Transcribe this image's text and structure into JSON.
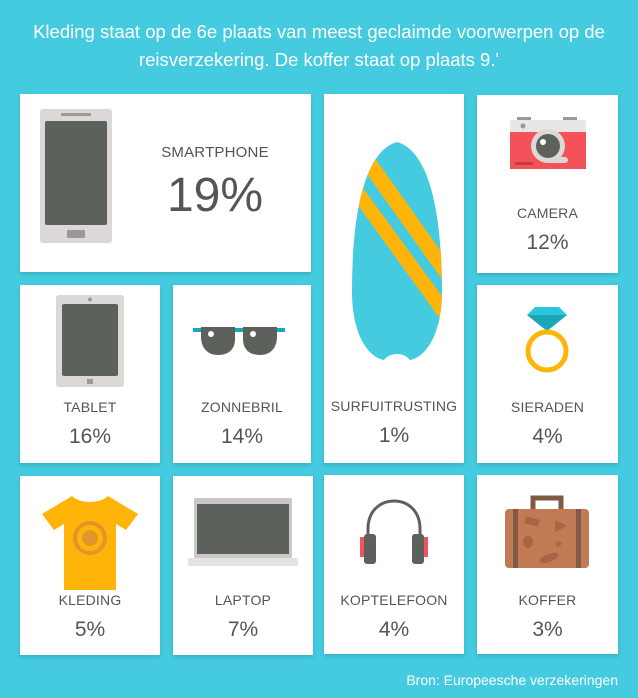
{
  "title": "Kleding staat op de 6e plaats van meest geclaimde voorwerpen op de reisverzekering. De koffer staat op plaats 9.'",
  "items": [
    {
      "label": "SMARTPHONE",
      "percent": "19%",
      "icon": "smartphone-icon"
    },
    {
      "label": "SURFUITRUSTING",
      "percent": "1%",
      "icon": "surfboard-icon"
    },
    {
      "label": "CAMERA",
      "percent": "12%",
      "icon": "camera-icon"
    },
    {
      "label": "TABLET",
      "percent": "16%",
      "icon": "tablet-icon"
    },
    {
      "label": "ZONNEBRIL",
      "percent": "14%",
      "icon": "sunglasses-icon"
    },
    {
      "label": "SIERADEN",
      "percent": "4%",
      "icon": "ring-icon"
    },
    {
      "label": "KLEDING",
      "percent": "5%",
      "icon": "tshirt-icon"
    },
    {
      "label": "LAPTOP",
      "percent": "7%",
      "icon": "laptop-icon"
    },
    {
      "label": "KOPTELEFOON",
      "percent": "4%",
      "icon": "headphones-icon"
    },
    {
      "label": "KOFFER",
      "percent": "3%",
      "icon": "suitcase-icon"
    }
  ],
  "source": "Bron: Europeesche verzekeringen",
  "colors": {
    "background": "#44cbe0",
    "card": "#ffffff",
    "accent_yellow": "#ffb40a",
    "accent_red": "#f4525a",
    "dark_gray": "#5d615b"
  }
}
